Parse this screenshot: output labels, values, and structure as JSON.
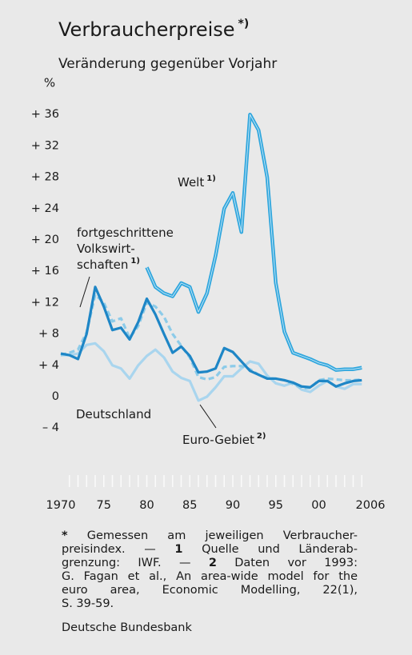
{
  "chart_data": {
    "type": "line",
    "title": "Verbraucherpreise",
    "title_note": "*)",
    "subtitle": "Veränderung gegenüber Vorjahr",
    "y_label": "%",
    "x": [
      1970,
      1971,
      1972,
      1973,
      1974,
      1975,
      1976,
      1977,
      1978,
      1979,
      1980,
      1981,
      1982,
      1983,
      1984,
      1985,
      1986,
      1987,
      1988,
      1989,
      1990,
      1991,
      1992,
      1993,
      1994,
      1995,
      1996,
      1997,
      1998,
      1999,
      2000,
      2001,
      2002,
      2003,
      2004,
      2005
    ],
    "series": [
      {
        "label": {
          "lines": [
            "Deutschland"
          ]
        },
        "color": "#a9d5ee",
        "dash": false,
        "values": [
          5.3,
          5.3,
          5.5,
          6.6,
          6.8,
          5.8,
          4.0,
          3.6,
          2.3,
          4.0,
          5.2,
          6.0,
          5.0,
          3.2,
          2.4,
          2.0,
          -0.5,
          0.0,
          1.2,
          2.6,
          2.6,
          3.6,
          4.5,
          4.2,
          2.7,
          1.7,
          1.4,
          1.8,
          0.9,
          0.6,
          1.4,
          2.0,
          1.3,
          1.0,
          1.6,
          1.6
        ]
      },
      {
        "label": {
          "lines": [
            "Euro-Gebiet"
          ],
          "note": "2)"
        },
        "color": "#8ccbe9",
        "dash": true,
        "values": [
          5.3,
          5.6,
          6.0,
          8.2,
          13.0,
          12.0,
          9.6,
          10.0,
          7.5,
          9.0,
          12.0,
          11.5,
          10.2,
          8.0,
          6.5,
          5.0,
          2.5,
          2.2,
          2.5,
          3.8,
          3.9,
          3.9,
          3.5,
          2.8,
          2.4,
          2.3,
          2.1,
          1.6,
          1.1,
          1.1,
          2.1,
          2.3,
          2.2,
          2.1,
          2.1,
          2.2
        ]
      },
      {
        "label": {
          "lines": [
            "fortgeschrittene",
            "Volkswirt-",
            "schaften"
          ],
          "note": "1)"
        },
        "color": "#1e86c6",
        "dash": false,
        "values": [
          5.5,
          5.3,
          4.8,
          8.0,
          14.0,
          11.5,
          8.5,
          8.8,
          7.3,
          9.5,
          12.5,
          10.5,
          8.0,
          5.6,
          6.4,
          5.2,
          3.1,
          3.2,
          3.6,
          6.2,
          5.7,
          4.5,
          3.3,
          2.8,
          2.3,
          2.3,
          2.1,
          1.8,
          1.3,
          1.2,
          2.0,
          2.0,
          1.3,
          1.7,
          2.0,
          2.1
        ]
      },
      {
        "label": {
          "lines": [
            "Welt"
          ],
          "note": "1)"
        },
        "color": "#2fa6dd",
        "dash": false,
        "values": [
          null,
          null,
          null,
          null,
          null,
          null,
          null,
          null,
          null,
          null,
          16.5,
          14.0,
          13.2,
          12.8,
          14.5,
          14.0,
          10.8,
          13.2,
          18.0,
          24.0,
          26.0,
          21.0,
          36.0,
          34.0,
          28.0,
          14.5,
          8.3,
          5.6,
          5.2,
          4.8,
          4.3,
          4.0,
          3.4,
          3.5,
          3.5,
          3.7
        ]
      }
    ],
    "xlim": [
      1970,
      2006
    ],
    "xticks": [
      1970,
      {
        "value": 1975,
        "label": "75"
      },
      {
        "value": 1980,
        "label": "80"
      },
      {
        "value": 1985,
        "label": "85"
      },
      {
        "value": 1990,
        "label": "90"
      },
      {
        "value": 1995,
        "label": "95"
      },
      {
        "value": 2000,
        "label": "00"
      },
      2006
    ],
    "xminorticks": [
      1971,
      1972,
      1973,
      1974,
      1975,
      1976,
      1977,
      1978,
      1979,
      1980,
      1981,
      1982,
      1983,
      1984,
      1985,
      1986,
      1987,
      1988,
      1989,
      1990,
      1991,
      1992,
      1993,
      1994,
      1995,
      1996,
      1997,
      1998,
      1999,
      2000,
      2001,
      2002,
      2003,
      2004,
      2005
    ],
    "ylim": [
      -12,
      38
    ],
    "yticks": [
      {
        "value": 36,
        "label": "+ 36"
      },
      {
        "value": 32,
        "label": "+ 32"
      },
      {
        "value": 28,
        "label": "+ 28"
      },
      {
        "value": 24,
        "label": "+ 24"
      },
      {
        "value": 20,
        "label": "+ 20"
      },
      {
        "value": 16,
        "label": "+ 16"
      },
      {
        "value": 12,
        "label": "+ 12"
      },
      {
        "value": 8,
        "label": "+ 8"
      },
      {
        "value": 4,
        "label": "+ 4"
      },
      0,
      {
        "value": -4,
        "label": "– 4"
      }
    ],
    "grid": false,
    "footnote": {
      "lines": [
        [
          {
            "bold": "*"
          },
          " Gemessen am jeweiligen Verbraucher-"
        ],
        [
          "preisindex. — ",
          {
            "bold": "1"
          },
          " Quelle und Länderab-"
        ],
        [
          "grenzung: IWF. — ",
          {
            "bold": "2"
          },
          " Daten vor 1993:"
        ],
        [
          "G. Fagan et al., An area-wide model for the"
        ],
        [
          "euro area, Economic Modelling, 22(1),"
        ],
        [
          "S. 39-59."
        ]
      ]
    },
    "source": "Deutsche Bundesbank"
  }
}
